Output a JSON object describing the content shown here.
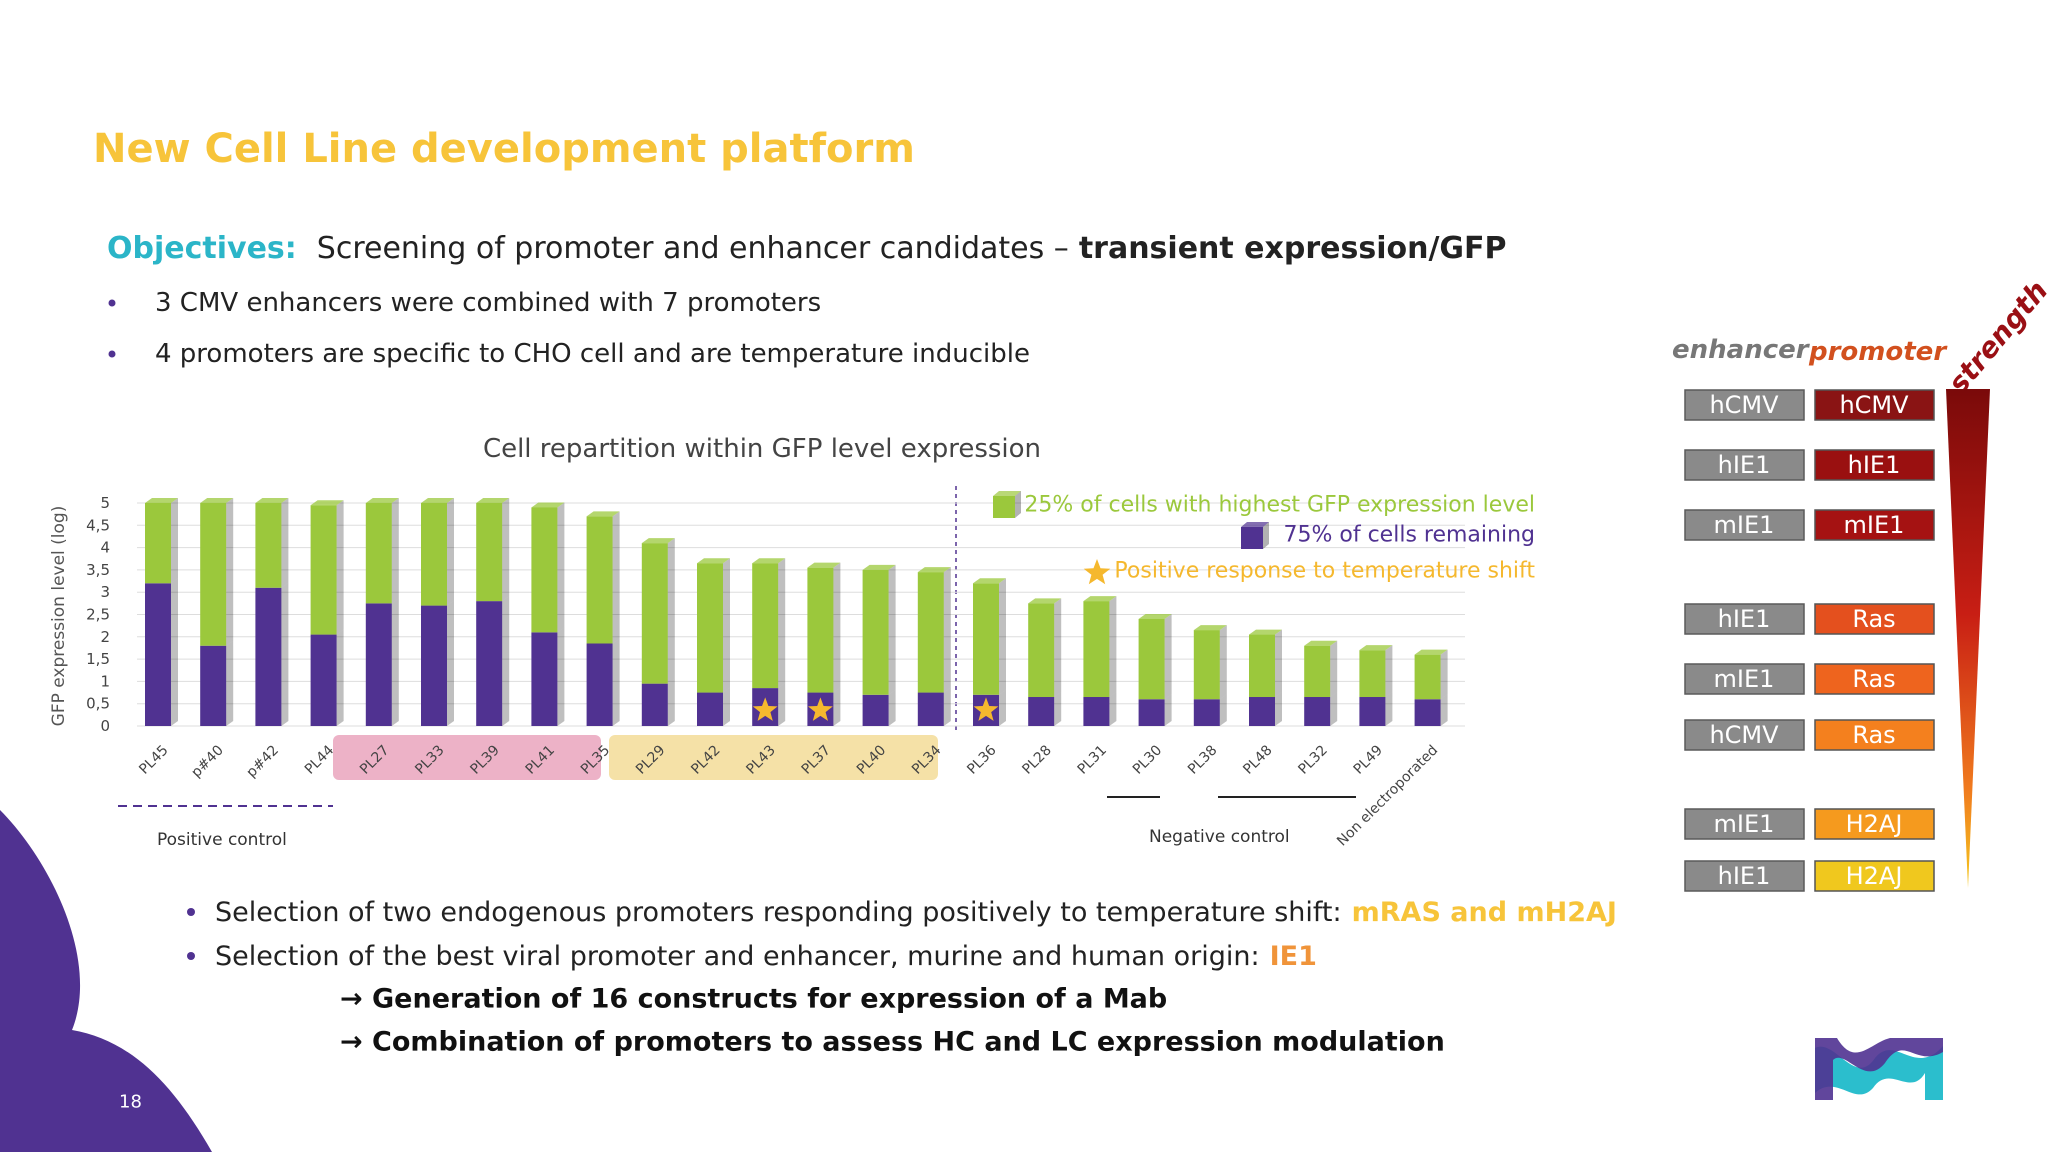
{
  "header": {
    "title": "New Cell Line development platform"
  },
  "objectives": {
    "label": "Objectives:",
    "text": "Screening of promoter and enhancer candidates –",
    "bold": "transient expression/GFP",
    "bullets": [
      "3 CMV enhancers were combined with 7 promoters",
      "4 promoters are specific to CHO cell and are temperature inducible"
    ]
  },
  "chart_data": {
    "type": "bar",
    "stacked": true,
    "title": "Cell repartition within GFP level expression",
    "y_label": "GFP expression level (log)",
    "categories": [
      "PL45",
      "p#40",
      "p#42",
      "PL44",
      "PL27",
      "PL33",
      "PL39",
      "PL41",
      "PL35",
      "PL29",
      "PL42",
      "PL43",
      "PL37",
      "PL40",
      "PL34",
      "PL36",
      "PL28",
      "PL31",
      "PL30",
      "PL38",
      "PL48",
      "PL32",
      "PL49",
      "Non electroporated"
    ],
    "series": [
      {
        "name": "75% of cells remaining",
        "color": "#503291",
        "values": [
          3.2,
          1.8,
          3.1,
          2.05,
          2.75,
          2.7,
          2.8,
          2.1,
          1.85,
          0.95,
          0.75,
          0.85,
          0.75,
          0.7,
          0.75,
          0.7,
          0.65,
          0.65,
          0.6,
          0.6,
          0.65,
          0.65,
          0.65,
          0.6
        ]
      },
      {
        "name": "25% of cells with highest GFP expression level",
        "color": "#9bc83c",
        "values": [
          1.8,
          3.2,
          1.9,
          2.9,
          2.25,
          2.3,
          2.2,
          2.8,
          2.85,
          3.15,
          2.9,
          2.8,
          2.8,
          2.8,
          2.7,
          2.5,
          2.1,
          2.15,
          1.8,
          1.55,
          1.4,
          1.15,
          1.05,
          1.0
        ]
      }
    ],
    "temperature_response": {
      "name": "Positive response to temperature shift",
      "color": "#f5b82e",
      "categories": [
        "PL43",
        "PL37",
        "PL36"
      ]
    },
    "annotations": [
      "Positive control",
      "Negative control"
    ],
    "ylim": [
      0,
      5
    ],
    "yticks": [
      0,
      {
        "value": 0.5,
        "label": "0,5"
      },
      1,
      {
        "value": 1.5,
        "label": "1,5"
      },
      2,
      {
        "value": 2.5,
        "label": "2,5"
      },
      3,
      {
        "value": 3.5,
        "label": "3,5"
      },
      4,
      {
        "value": 4.5,
        "label": "4,5"
      },
      5
    ],
    "grid": true
  },
  "results": {
    "bullets": [
      {
        "text": "Selection of two endogenous promoters responding positively to temperature shift:",
        "highlight": "mRAS and mH2AJ",
        "color": "#f7c43a"
      },
      {
        "text": "Selection of the best viral promoter and enhancer, murine and human origin:",
        "highlight": "IE1",
        "color": "#f0943a"
      }
    ],
    "arrows": [
      "→ Generation of 16 constructs for expression of a Mab",
      "→ Combination of promoters to assess HC and LC expression modulation"
    ]
  },
  "constructs": {
    "enhancer_label": "enhancer",
    "promoter_label": "promoter",
    "strength_label": "strength",
    "rows": [
      {
        "enhancer": "hCMV",
        "promoter": "hCMV",
        "color": "#8a1414"
      },
      {
        "enhancer": "hIE1",
        "promoter": "hIE1",
        "color": "#9a1010"
      },
      {
        "enhancer": "mIE1",
        "promoter": "mIE1",
        "color": "#a51212"
      },
      {
        "enhancer": "hIE1",
        "promoter": "Ras",
        "color": "#e4501e"
      },
      {
        "enhancer": "mIE1",
        "promoter": "Ras",
        "color": "#ee641e"
      },
      {
        "enhancer": "hCMV",
        "promoter": "Ras",
        "color": "#f4801e"
      },
      {
        "enhancer": "mIE1",
        "promoter": "H2AJ",
        "color": "#f59a1e"
      },
      {
        "enhancer": "hIE1",
        "promoter": "H2AJ",
        "color": "#f0c81e"
      }
    ]
  },
  "page_number": "18"
}
